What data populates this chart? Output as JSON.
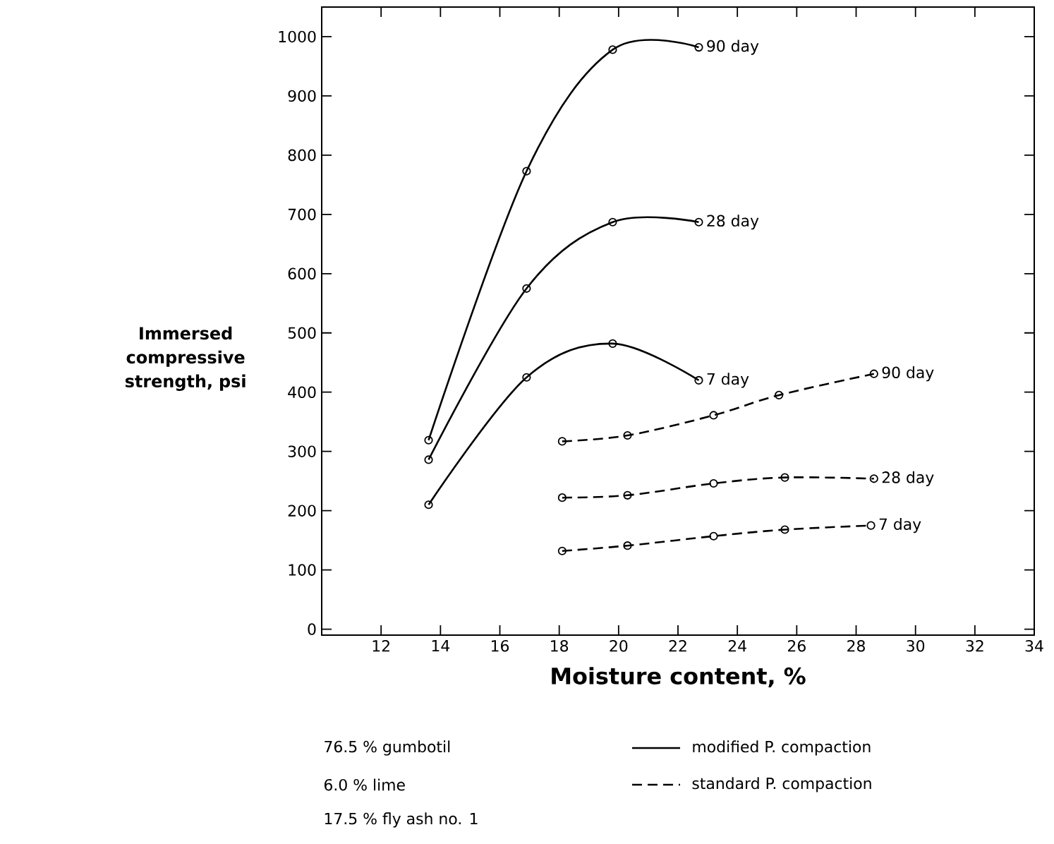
{
  "chart_data": {
    "type": "line",
    "xlabel": "Moisture content, %",
    "ylabel": "Immersed compressive strength, psi",
    "xlim": [
      10,
      34
    ],
    "ylim": [
      -10,
      1050
    ],
    "xticks": [
      12,
      14,
      16,
      18,
      20,
      22,
      24,
      26,
      28,
      30,
      32,
      34
    ],
    "yticks": [
      0,
      100,
      200,
      300,
      400,
      500,
      600,
      700,
      800,
      900,
      1000
    ],
    "marker": "circle",
    "series": [
      {
        "name": "90 day",
        "color": "#000000",
        "line_style": "solid",
        "x": [
          13.6,
          16.9,
          19.8,
          22.7
        ],
        "values": [
          319,
          773,
          978,
          982
        ]
      },
      {
        "name": "28 day",
        "color": "#000000",
        "line_style": "solid",
        "x": [
          13.6,
          16.9,
          19.8,
          22.7
        ],
        "values": [
          286,
          575,
          687,
          687
        ]
      },
      {
        "name": "7 day",
        "color": "#000000",
        "line_style": "solid",
        "x": [
          13.6,
          16.9,
          19.8,
          22.7
        ],
        "values": [
          210,
          425,
          482,
          420
        ]
      },
      {
        "name": "90 day",
        "color": "#000000",
        "line_style": "dashed",
        "x": [
          18.1,
          20.3,
          23.2,
          25.4,
          28.6
        ],
        "values": [
          317,
          327,
          361,
          395,
          431
        ]
      },
      {
        "name": "28 day",
        "color": "#000000",
        "line_style": "dashed",
        "x": [
          18.1,
          20.3,
          23.2,
          25.6,
          28.6
        ],
        "values": [
          222,
          226,
          246,
          256,
          254
        ]
      },
      {
        "name": "7 day",
        "color": "#000000",
        "line_style": "dashed",
        "x": [
          18.1,
          20.3,
          23.2,
          25.6,
          28.5
        ],
        "values": [
          132,
          141,
          157,
          168,
          175
        ]
      }
    ],
    "annotations": [
      "76.5 % gumbotil",
      "6.0 % lime",
      "17.5 % fly ash no. 1",
      "modified P. compaction",
      "standard P. compaction"
    ]
  }
}
